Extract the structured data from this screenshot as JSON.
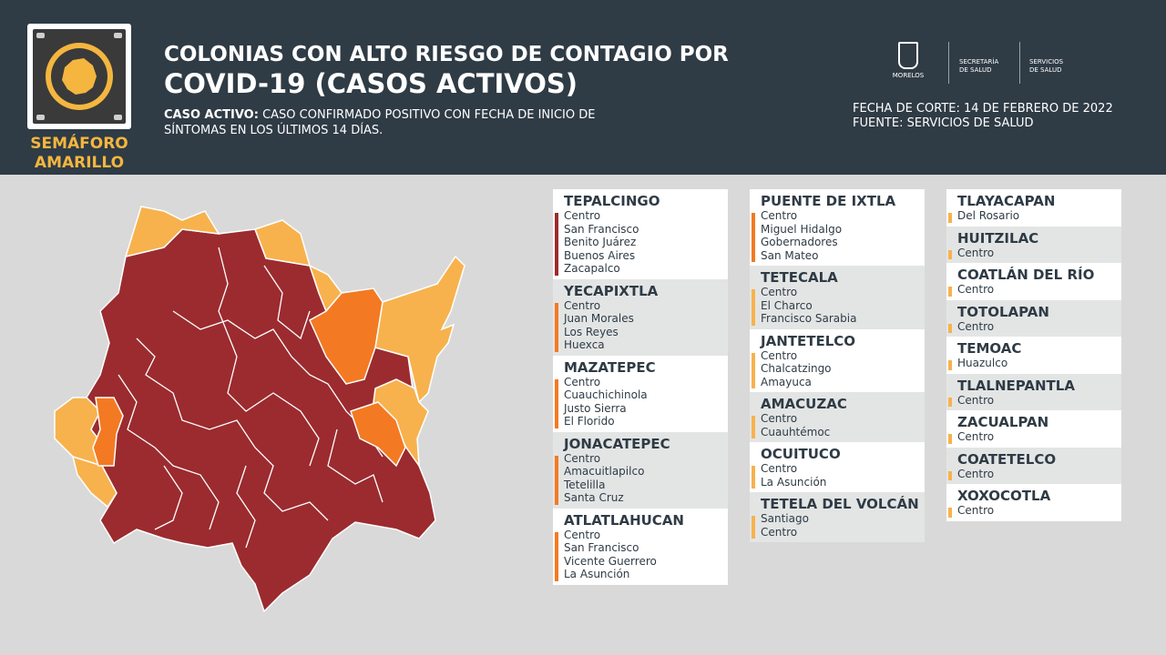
{
  "header": {
    "title_line1": "COLONIAS CON ALTO RIESGO DE CONTAGIO POR",
    "title_line2": "COVID-19 (CASOS ACTIVOS)",
    "definition_label": "CASO ACTIVO:",
    "definition_text": "CASO CONFIRMADO POSITIVO CON FECHA DE INICIO DE SÍNTOMAS EN LOS ÚLTIMOS 14 DÍAS.",
    "cutoff_date": "FECHA DE CORTE: 14 DE FEBRERO DE 2022",
    "source": "FUENTE: SERVICIOS DE SALUD",
    "traffic_light_line1": "SEMÁFORO",
    "traffic_light_line2": "AMARILLO",
    "logo_morelos": "MORELOS",
    "logo_secretaria_1": "SECRETARÍA",
    "logo_secretaria_2": "DE SALUD",
    "logo_servicios_1": "SERVICIOS",
    "logo_servicios_2": "DE SALUD"
  },
  "colors": {
    "header_bg": "#2f3b45",
    "high_risk": "#9b2b2f",
    "medium_risk": "#f37a22",
    "low_risk": "#f7b24d",
    "semaforo_amarillo": "#f4b63f"
  },
  "columns": [
    [
      {
        "name": "TEPALCINGO",
        "risk": "high",
        "colonias": [
          "Centro",
          "San Francisco",
          "Benito Juárez",
          "Buenos Aires",
          "Zacapalco"
        ]
      },
      {
        "name": "YECAPIXTLA",
        "risk": "medium",
        "colonias": [
          "Centro",
          "Juan Morales",
          "Los Reyes",
          "Huexca"
        ]
      },
      {
        "name": "MAZATEPEC",
        "risk": "medium",
        "colonias": [
          "Centro",
          "Cuauchichinola",
          "Justo Sierra",
          "El Florido"
        ]
      },
      {
        "name": "JONACATEPEC",
        "risk": "medium",
        "colonias": [
          "Centro",
          "Amacuitlapilco",
          "Tetelilla",
          "Santa Cruz"
        ]
      },
      {
        "name": "ATLATLAHUCAN",
        "risk": "medium",
        "colonias": [
          "Centro",
          "San Francisco",
          "Vicente Guerrero",
          "La Asunción"
        ]
      }
    ],
    [
      {
        "name": "PUENTE DE IXTLA",
        "risk": "medium",
        "colonias": [
          "Centro",
          "Miguel Hidalgo",
          "Gobernadores",
          "San Mateo"
        ]
      },
      {
        "name": "TETECALA",
        "risk": "low",
        "colonias": [
          "Centro",
          "El Charco",
          "Francisco Sarabia"
        ]
      },
      {
        "name": "JANTETELCO",
        "risk": "low",
        "colonias": [
          "Centro",
          "Chalcatzingo",
          "Amayuca"
        ]
      },
      {
        "name": "AMACUZAC",
        "risk": "low",
        "colonias": [
          "Centro",
          "Cuauhtémoc"
        ]
      },
      {
        "name": "OCUITUCO",
        "risk": "low",
        "colonias": [
          "Centro",
          "La Asunción"
        ]
      },
      {
        "name": "TETELA DEL VOLCÁN",
        "risk": "low",
        "colonias": [
          "Santiago",
          "Centro"
        ]
      }
    ],
    [
      {
        "name": "TLAYACAPAN",
        "risk": "low",
        "colonias": [
          "Del Rosario"
        ]
      },
      {
        "name": "HUITZILAC",
        "risk": "low",
        "colonias": [
          "Centro"
        ]
      },
      {
        "name": "COATLÁN DEL RÍO",
        "risk": "low",
        "colonias": [
          "Centro"
        ]
      },
      {
        "name": "TOTOLAPAN",
        "risk": "low",
        "colonias": [
          "Centro"
        ]
      },
      {
        "name": "TEMOAC",
        "risk": "low",
        "colonias": [
          "Huazulco"
        ]
      },
      {
        "name": "TLALNEPANTLA",
        "risk": "low",
        "colonias": [
          "Centro"
        ]
      },
      {
        "name": "ZACUALPAN",
        "risk": "low",
        "colonias": [
          "Centro"
        ]
      },
      {
        "name": "COATETELCO",
        "risk": "low",
        "colonias": [
          "Centro"
        ]
      },
      {
        "name": "XOXOCOTLA",
        "risk": "low",
        "colonias": [
          "Centro"
        ]
      }
    ]
  ]
}
